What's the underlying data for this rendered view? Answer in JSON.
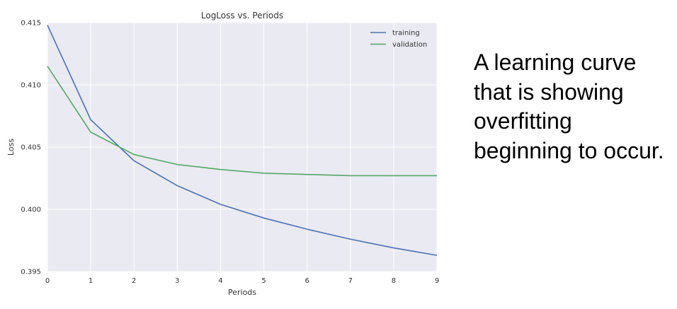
{
  "caption": "A learning curve that is showing overfitting beginning to occur.",
  "chart_data": {
    "type": "line",
    "title": "LogLoss vs. Periods",
    "xlabel": "Periods",
    "ylabel": "Loss",
    "xlim": [
      0,
      9
    ],
    "ylim": [
      0.395,
      0.415
    ],
    "x_ticks": [
      "0",
      "1",
      "2",
      "3",
      "4",
      "5",
      "6",
      "7",
      "8",
      "9"
    ],
    "y_ticks": [
      "0.395",
      "0.400",
      "0.405",
      "0.410",
      "0.415"
    ],
    "grid": true,
    "legend_position": "top-right",
    "x": [
      0,
      1,
      2,
      3,
      4,
      5,
      6,
      7,
      8,
      9
    ],
    "series": [
      {
        "name": "training",
        "color": "#4c72b0",
        "values": [
          0.4148,
          0.4072,
          0.4039,
          0.4019,
          0.4004,
          0.3993,
          0.3984,
          0.3976,
          0.3969,
          0.3963
        ]
      },
      {
        "name": "validation",
        "color": "#55a868",
        "values": [
          0.4115,
          0.4062,
          0.4044,
          0.4036,
          0.4032,
          0.4029,
          0.4028,
          0.4027,
          0.4027,
          0.4027
        ]
      }
    ],
    "colors": {
      "plot_background": "#eaeaf2",
      "grid": "#ffffff"
    }
  }
}
